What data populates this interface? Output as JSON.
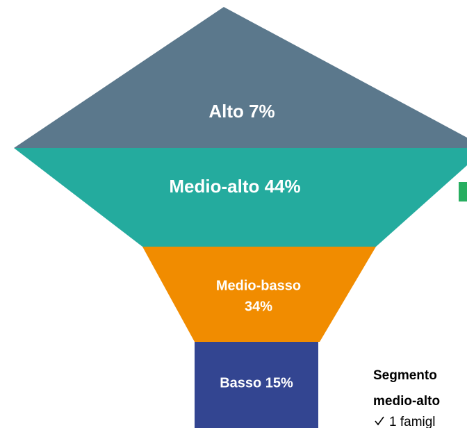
{
  "nodes": [
    {
      "label": "Alto 7%"
    },
    {
      "label": "Medio-alto 44%"
    },
    {
      "label": [
        "Medio-basso",
        "34%"
      ]
    },
    {
      "label": "Basso 15%"
    }
  ],
  "side_text": {
    "title": [
      "Segmento",
      "medio-alto"
    ],
    "items": [
      "1 famigl"
    ]
  }
}
